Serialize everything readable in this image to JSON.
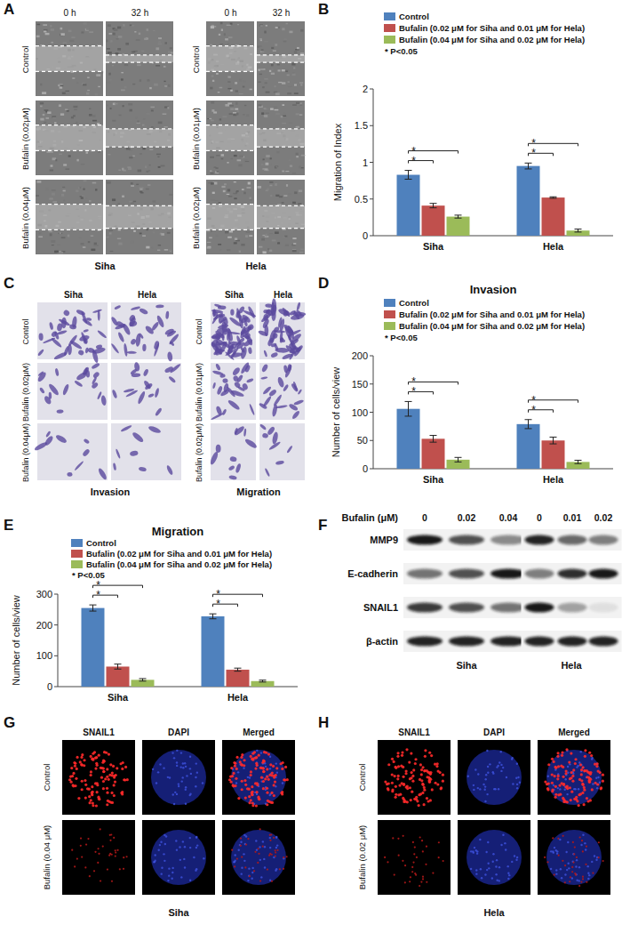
{
  "panel_labels": [
    "A",
    "B",
    "C",
    "D",
    "E",
    "F",
    "G",
    "H"
  ],
  "scratch_assay": {
    "time_labels": [
      "0 h",
      "32 h"
    ],
    "groups": [
      {
        "cell_line": "Siha",
        "rows": [
          "Control",
          "Bufalin (0.02μM)",
          "Bufalin (0.04μM)"
        ]
      },
      {
        "cell_line": "Hela",
        "rows": [
          "Control",
          "Bufalin (0.01μM)",
          "Bufalin (0.02μM)"
        ]
      }
    ]
  },
  "chart_data": [
    {
      "type": "bar",
      "y_label": "Migration of Index",
      "categories": [
        "Siha",
        "Hela"
      ],
      "series": [
        {
          "name": "Control",
          "color": "#4f81bd",
          "values": [
            0.83,
            0.95
          ],
          "errors": [
            0.06,
            0.04
          ]
        },
        {
          "name": "Bufalin (0.02 μM for Siha and 0.01 μM for Hela)",
          "color": "#c0504d",
          "values": [
            0.41,
            0.52
          ],
          "errors": [
            0.03,
            0.01
          ]
        },
        {
          "name": "Bufalin (0.04 μM for Siha and 0.02 μM for Hela)",
          "color": "#9bbb59",
          "values": [
            0.26,
            0.07
          ],
          "errors": [
            0.02,
            0.02
          ]
        }
      ],
      "ylim": [
        0,
        2
      ],
      "yticks": [
        0,
        0.5,
        1,
        1.5,
        2
      ],
      "grid": false,
      "legend": "top-left",
      "note": "* P<0.05",
      "comparisons": [
        {
          "category": 0,
          "from": 0,
          "to": 1,
          "label": "*"
        },
        {
          "category": 0,
          "from": 0,
          "to": 2,
          "label": "*"
        },
        {
          "category": 1,
          "from": 0,
          "to": 1,
          "label": "*"
        },
        {
          "category": 1,
          "from": 0,
          "to": 2,
          "label": "*"
        }
      ]
    },
    {
      "type": "bar",
      "title": "Invasion",
      "y_label": "Number of cells/view",
      "categories": [
        "Siha",
        "Hela"
      ],
      "series": [
        {
          "name": "Control",
          "color": "#4f81bd",
          "values": [
            106,
            79
          ],
          "errors": [
            13,
            8
          ]
        },
        {
          "name": "Bufalin (0.02 μM for Siha and 0.01 μM for Hela)",
          "color": "#c0504d",
          "values": [
            53,
            50
          ],
          "errors": [
            6,
            6
          ]
        },
        {
          "name": "Bufalin (0.04 μM for Siha and 0.02 μM for Hela)",
          "color": "#9bbb59",
          "values": [
            16,
            12
          ],
          "errors": [
            4,
            3
          ]
        }
      ],
      "ylim": [
        0,
        200
      ],
      "yticks": [
        0,
        50,
        100,
        150,
        200
      ],
      "grid": false,
      "legend": "top-left",
      "note": "* P<0.05",
      "comparisons": [
        {
          "category": 0,
          "from": 0,
          "to": 1,
          "label": "*"
        },
        {
          "category": 0,
          "from": 0,
          "to": 2,
          "label": "*"
        },
        {
          "category": 1,
          "from": 0,
          "to": 1,
          "label": "*"
        },
        {
          "category": 1,
          "from": 0,
          "to": 2,
          "label": "*"
        }
      ]
    },
    {
      "type": "bar",
      "title": "Migration",
      "y_label": "Number of cells/view",
      "categories": [
        "Siha",
        "Hela"
      ],
      "series": [
        {
          "name": "Control",
          "color": "#4f81bd",
          "values": [
            255,
            228
          ],
          "errors": [
            10,
            8
          ]
        },
        {
          "name": "Bufalin (0.02 μM for Siha and 0.01 μM for Hela)",
          "color": "#c0504d",
          "values": [
            65,
            55
          ],
          "errors": [
            8,
            5
          ]
        },
        {
          "name": "Bufalin (0.04 μM for Siha and 0.02 μM for Hela)",
          "color": "#9bbb59",
          "values": [
            22,
            18
          ],
          "errors": [
            4,
            3
          ]
        }
      ],
      "ylim": [
        0,
        300
      ],
      "yticks": [
        0,
        100,
        200,
        300
      ],
      "grid": false,
      "legend": "top-left",
      "note": "*  P<0.05",
      "comparisons": [
        {
          "category": 0,
          "from": 0,
          "to": 1,
          "label": "*"
        },
        {
          "category": 0,
          "from": 0,
          "to": 2,
          "label": "*"
        },
        {
          "category": 1,
          "from": 0,
          "to": 1,
          "label": "*"
        },
        {
          "category": 1,
          "from": 0,
          "to": 2,
          "label": "*"
        }
      ]
    }
  ],
  "transwell": {
    "groups": [
      {
        "title": "Invasion",
        "columns": [
          "Siha",
          "Hela"
        ],
        "rows": [
          "Control",
          "Bufalin (0.02μM)",
          "Bufalin (0.04μM)"
        ]
      },
      {
        "title": "Migration",
        "columns": [
          "Siha",
          "Hela"
        ],
        "rows": [
          "Control",
          "Bufalin (0.01μM)",
          "Bufalin (0.02μM)"
        ]
      }
    ]
  },
  "western_blot": {
    "header": "Bufalin (μM)",
    "groups": [
      {
        "cell_line": "Siha",
        "doses": [
          0,
          0.02,
          0.04
        ]
      },
      {
        "cell_line": "Hela",
        "doses": [
          0,
          0.01,
          0.02
        ]
      }
    ],
    "rows": [
      {
        "label": "MMP9",
        "intensity": [
          [
            0.95,
            0.7,
            0.45
          ],
          [
            0.9,
            0.6,
            0.5
          ]
        ]
      },
      {
        "label": "E-cadherin",
        "intensity": [
          [
            0.55,
            0.7,
            0.95
          ],
          [
            0.5,
            0.85,
            0.95
          ]
        ]
      },
      {
        "label": "SNAIL1",
        "intensity": [
          [
            0.8,
            0.7,
            0.55
          ],
          [
            0.95,
            0.35,
            0.08
          ]
        ]
      },
      {
        "label": "β-actin",
        "intensity": [
          [
            0.9,
            0.9,
            0.9
          ],
          [
            0.9,
            0.9,
            0.9
          ]
        ]
      }
    ]
  },
  "immunofluorescence": [
    {
      "cell_line": "Siha",
      "channels": [
        "SNAIL1",
        "DAPI",
        "Merged"
      ],
      "rows": [
        "Control",
        "Bufalin (0.04 μM)"
      ]
    },
    {
      "cell_line": "Hela",
      "channels": [
        "SNAIL1",
        "DAPI",
        "Merged"
      ],
      "rows": [
        "Control",
        "Bufalin (0.02 μM)"
      ]
    }
  ]
}
